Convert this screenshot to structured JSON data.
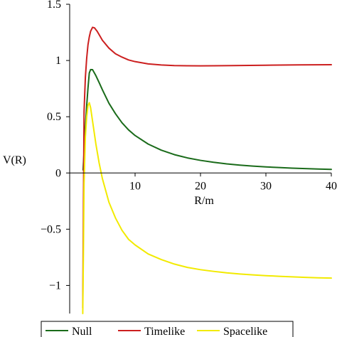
{
  "chart_data": {
    "type": "line",
    "xlabel": "R/m",
    "ylabel": "V(R)",
    "xlim": [
      0,
      40
    ],
    "ylim": [
      -1.25,
      1.5
    ],
    "xticks": [
      10,
      20,
      30,
      40
    ],
    "xtick_labels": [
      "10",
      "20",
      "30",
      "40"
    ],
    "yticks": [
      1.5,
      1,
      0.5,
      0,
      -0.5,
      -1
    ],
    "ytick_labels": [
      "1.5",
      "1",
      "0.5",
      "0",
      "−0.5",
      "−1"
    ],
    "grid": false,
    "legend_position": "bottom",
    "series": [
      {
        "name": "Null",
        "color": "#1a6b1a",
        "x": [
          2.05,
          2.2,
          2.4,
          2.6,
          2.8,
          3.0,
          3.2,
          3.5,
          4.0,
          4.5,
          5.0,
          6.0,
          7.0,
          8.0,
          9.0,
          10.0,
          12.0,
          14.0,
          16.0,
          18.0,
          20.0,
          22.0,
          24.0,
          26.0,
          28.0,
          30.0,
          32.0,
          34.0,
          36.0,
          38.0,
          40.0
        ],
        "y": [
          0.027,
          0.186,
          0.409,
          0.597,
          0.756,
          0.889,
          0.919,
          0.918,
          0.866,
          0.804,
          0.74,
          0.62,
          0.527,
          0.446,
          0.383,
          0.333,
          0.257,
          0.203,
          0.163,
          0.134,
          0.112,
          0.095,
          0.081,
          0.07,
          0.061,
          0.054,
          0.048,
          0.043,
          0.039,
          0.035,
          0.032
        ]
      },
      {
        "name": "Timelike",
        "color": "#cc1f1f",
        "x": [
          2.0,
          2.2,
          2.4,
          2.6,
          2.8,
          3.0,
          3.2,
          3.5,
          3.8,
          4.2,
          4.6,
          5.0,
          6.0,
          7.0,
          8.0,
          9.0,
          10.0,
          12.0,
          14.0,
          16.0,
          18.0,
          20.0,
          22.0,
          25.0,
          30.0,
          35.0,
          40.0
        ],
        "y": [
          -1.2,
          0.55,
          0.85,
          1.02,
          1.14,
          1.21,
          1.26,
          1.295,
          1.29,
          1.26,
          1.22,
          1.18,
          1.11,
          1.06,
          1.03,
          1.005,
          0.99,
          0.97,
          0.96,
          0.955,
          0.953,
          0.952,
          0.953,
          0.955,
          0.958,
          0.961,
          0.963
        ]
      },
      {
        "name": "Spacelike",
        "color": "#f2ea00",
        "x": [
          2.0,
          2.1,
          2.2,
          2.4,
          2.6,
          2.8,
          3.0,
          3.2,
          3.5,
          4.0,
          4.5,
          5.0,
          6.0,
          7.0,
          8.0,
          9.0,
          10.0,
          12.0,
          14.0,
          16.0,
          18.0,
          20.0,
          22.0,
          24.0,
          26.0,
          28.0,
          30.0,
          32.0,
          34.0,
          36.0,
          38.0,
          40.0
        ],
        "y": [
          -1.25,
          -0.72,
          -0.09,
          0.32,
          0.5,
          0.6,
          0.625,
          0.58,
          0.46,
          0.26,
          0.09,
          -0.05,
          -0.26,
          -0.4,
          -0.51,
          -0.59,
          -0.64,
          -0.72,
          -0.77,
          -0.81,
          -0.84,
          -0.86,
          -0.875,
          -0.888,
          -0.898,
          -0.906,
          -0.913,
          -0.919,
          -0.924,
          -0.928,
          -0.932,
          -0.935
        ]
      }
    ]
  }
}
